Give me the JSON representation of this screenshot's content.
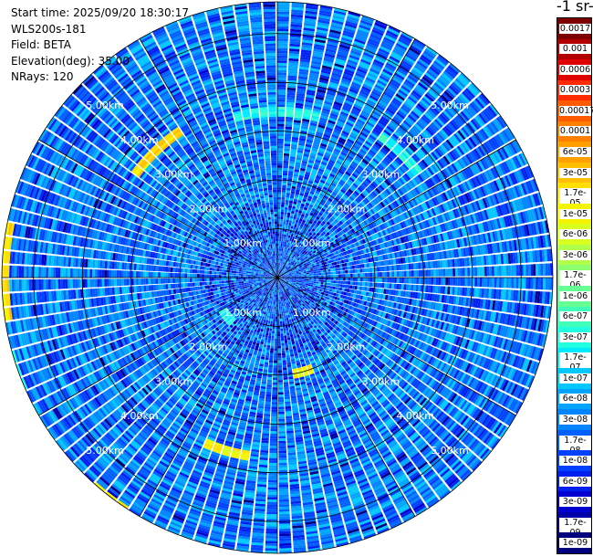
{
  "header": {
    "start_time": "Start time: 2025/09/20 18:30:17",
    "instrument": "WLS200s-181",
    "field": "Field: BETA",
    "elevation": "Elevation(deg): 35.00",
    "nrays": "NRays: 120"
  },
  "colorbar": {
    "unit_label": "-1 sr-",
    "labels": [
      "0.0017",
      "0.001",
      "0.0006",
      "0.0003",
      "0.00017",
      "0.0001",
      "6e-05",
      "3e-05",
      "1.7e-05",
      "1e-05",
      "6e-06",
      "3e-06",
      "1.7e-06",
      "1e-06",
      "6e-07",
      "3e-07",
      "1.7e-07",
      "1e-07",
      "6e-08",
      "3e-08",
      "1.7e-08",
      "1e-08",
      "6e-09",
      "3e-09",
      "1.7e-09",
      "1e-09"
    ],
    "colors": [
      "#7f0000",
      "#b20000",
      "#e00000",
      "#ff2a00",
      "#ff5a00",
      "#ff7f00",
      "#ff9f00",
      "#ffbf00",
      "#ffdf00",
      "#f4f400",
      "#d8ff20",
      "#b0ff4a",
      "#8cff70",
      "#66ff94",
      "#40ffbb",
      "#20ffe0",
      "#00eaff",
      "#00c8ff",
      "#00a4ff",
      "#0084ff",
      "#0060ff",
      "#0040ff",
      "#0020f0",
      "#0000d0",
      "#0000a8",
      "#00007f"
    ]
  },
  "chart_data": {
    "type": "heatmap",
    "projection": "polar-ppi",
    "field": "BETA",
    "elevation_deg": 35.0,
    "n_rays": 120,
    "range_rings_km": [
      1,
      2,
      3,
      4,
      5
    ],
    "range_labels": [
      "1.00km",
      "2.00km",
      "3.00km",
      "4.00km",
      "5.00km"
    ],
    "max_range_km": 5.65,
    "scale": "log",
    "vmin": 1e-09,
    "vmax": 0.0017,
    "background_level": 3e-08,
    "features": [
      {
        "azimuth_from_deg": 260,
        "azimuth_to_deg": 282,
        "range_km": 5.6,
        "value": 1.7e-05
      },
      {
        "azimuth_from_deg": 305,
        "azimuth_to_deg": 328,
        "range_km": 3.6,
        "value": 1.7e-05
      },
      {
        "azimuth_from_deg": 345,
        "azimuth_to_deg": 15,
        "range_km": 3.4,
        "value": 3e-07
      },
      {
        "azimuth_from_deg": 35,
        "azimuth_to_deg": 55,
        "range_km": 3.6,
        "value": 3e-07
      },
      {
        "azimuth_from_deg": 190,
        "azimuth_to_deg": 205,
        "range_km": 3.7,
        "value": 1e-05
      },
      {
        "azimuth_from_deg": 212,
        "azimuth_to_deg": 222,
        "range_km": 5.7,
        "value": 1e-05
      },
      {
        "azimuth_from_deg": 160,
        "azimuth_to_deg": 170,
        "range_km": 2.0,
        "value": 1e-05
      },
      {
        "azimuth_from_deg": 225,
        "azimuth_to_deg": 240,
        "range_km": 1.3,
        "value": 3e-07
      },
      {
        "azimuth_from_deg": 245,
        "azimuth_to_deg": 255,
        "range_km": 5.7,
        "value": 3e-07
      }
    ]
  }
}
